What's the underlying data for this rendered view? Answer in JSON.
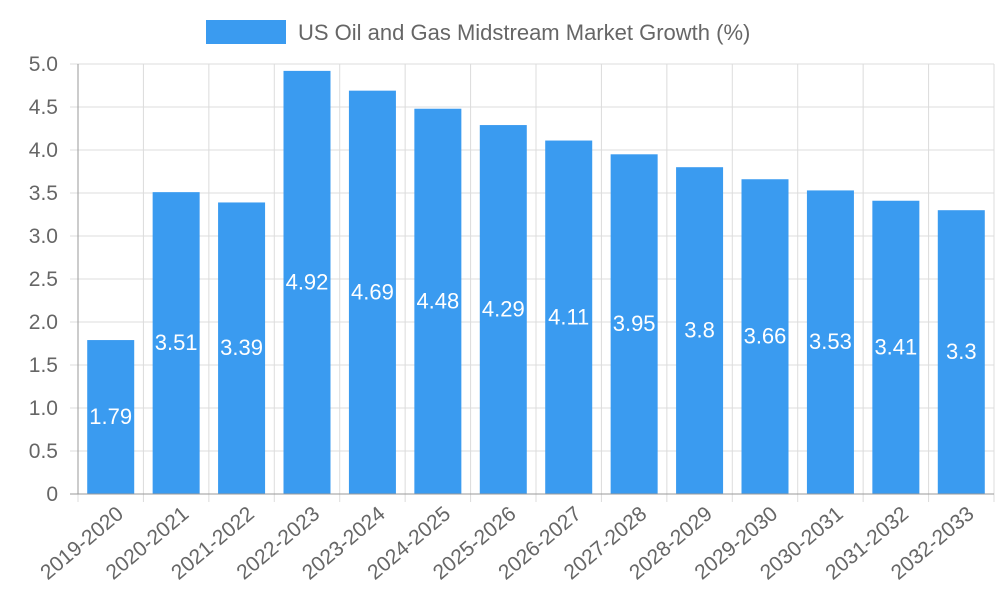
{
  "chart_data": {
    "type": "bar",
    "title": "",
    "legend": {
      "label": "US Oil and Gas Midstream Market Growth (%)",
      "position": "top",
      "color": "#3a9bf0"
    },
    "categories": [
      "2019-2020",
      "2020-2021",
      "2021-2022",
      "2022-2023",
      "2023-2024",
      "2024-2025",
      "2025-2026",
      "2026-2027",
      "2027-2028",
      "2028-2029",
      "2029-2030",
      "2030-2031",
      "2031-2032",
      "2032-2033"
    ],
    "series": [
      {
        "name": "US Oil and Gas Midstream Market Growth (%)",
        "values": [
          1.79,
          3.51,
          3.39,
          4.92,
          4.69,
          4.48,
          4.29,
          4.11,
          3.95,
          3.8,
          3.66,
          3.53,
          3.41,
          3.3
        ],
        "color": "#3a9bf0"
      }
    ],
    "data_labels": [
      "1.79",
      "3.51",
      "3.39",
      "4.92",
      "4.69",
      "4.48",
      "4.29",
      "4.11",
      "3.95",
      "3.8",
      "3.66",
      "3.53",
      "3.41",
      "3.3"
    ],
    "y_ticks": [
      "0",
      "0.5",
      "1.0",
      "1.5",
      "2.0",
      "2.5",
      "3.0",
      "3.5",
      "4.0",
      "4.5",
      "5.0"
    ],
    "ylim": [
      0,
      5
    ],
    "xlabel": "",
    "ylabel": "",
    "grid": true
  }
}
